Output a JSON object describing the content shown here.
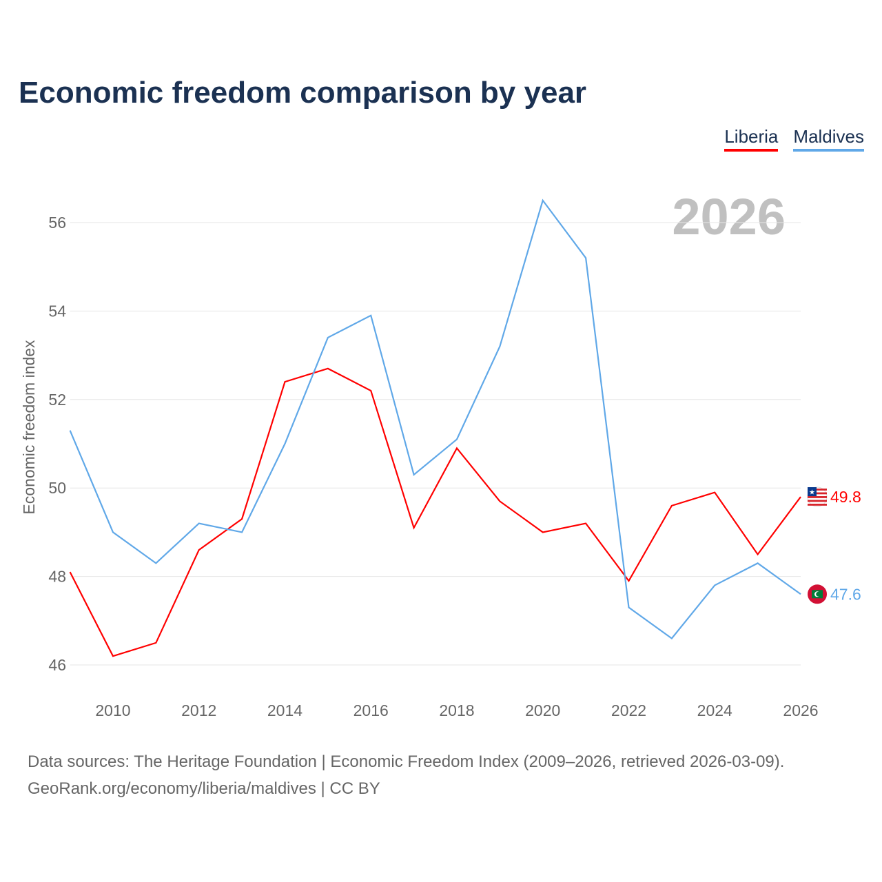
{
  "title": "Economic freedom comparison by year",
  "legend": [
    {
      "label": "Liberia",
      "color": "#ff0000"
    },
    {
      "label": "Maldives",
      "color": "#60a8e8"
    }
  ],
  "year_watermark": "2026",
  "source_line1": "Data sources: The Heritage Foundation | Economic Freedom Index (2009–2026, retrieved 2026-03-09).",
  "source_line2": "GeoRank.org/economy/liberia/maldives | CC BY",
  "chart_data": {
    "type": "line",
    "title": "Economic freedom comparison by year",
    "xlabel": "",
    "ylabel": "Economic freedom index",
    "x": [
      2009,
      2010,
      2011,
      2012,
      2013,
      2014,
      2015,
      2016,
      2017,
      2018,
      2019,
      2020,
      2021,
      2022,
      2023,
      2024,
      2025,
      2026
    ],
    "xlim": [
      2009,
      2026
    ],
    "ylim": [
      46,
      56.5
    ],
    "xticks": [
      "2010",
      "2012",
      "2014",
      "2016",
      "2018",
      "2020",
      "2022",
      "2024",
      "2026"
    ],
    "yticks": [
      "46",
      "48",
      "50",
      "52",
      "54",
      "56"
    ],
    "grid": true,
    "legend_position": "top-right",
    "series": [
      {
        "name": "Liberia",
        "color": "#ff0000",
        "end_label": "49.8",
        "values": [
          48.1,
          46.2,
          46.5,
          48.6,
          49.3,
          52.4,
          52.7,
          52.2,
          49.1,
          50.9,
          49.7,
          49.0,
          49.2,
          47.9,
          49.6,
          49.9,
          48.5,
          49.8
        ]
      },
      {
        "name": "Maldives",
        "color": "#60a8e8",
        "end_label": "47.6",
        "values": [
          51.3,
          49.0,
          48.3,
          49.2,
          49.0,
          51.0,
          53.4,
          53.9,
          50.3,
          51.1,
          53.2,
          56.5,
          55.2,
          47.3,
          46.6,
          47.8,
          48.3,
          47.6
        ]
      }
    ]
  }
}
